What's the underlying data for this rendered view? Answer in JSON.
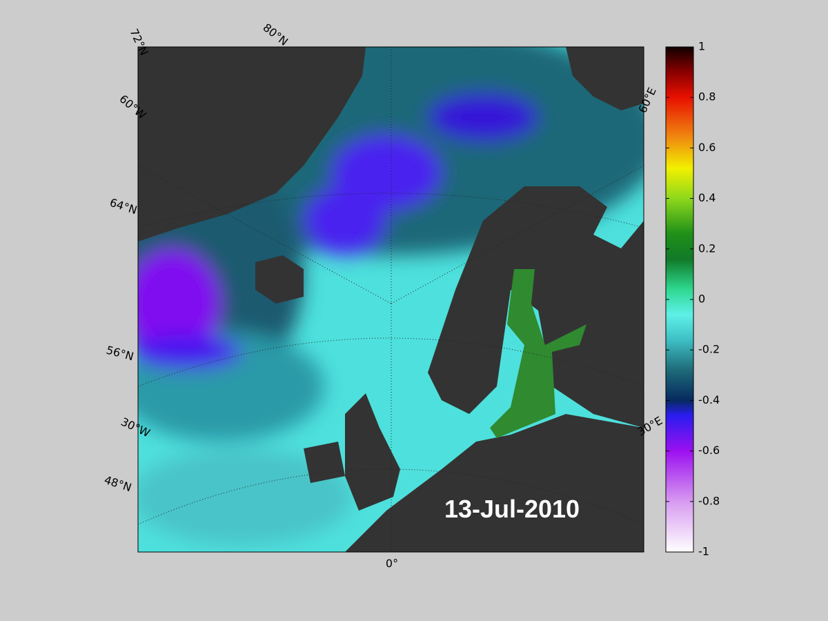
{
  "map": {
    "date_label": "13-Jul-2010",
    "graticule_labels": [
      "72°N",
      "80°N",
      "60°W",
      "64°N",
      "56°N",
      "30°W",
      "48°N",
      "60°E",
      "30°E",
      "0°"
    ]
  },
  "colorbar": {
    "lim": [
      -1,
      1
    ],
    "ticks": [
      1,
      0.8,
      0.6,
      0.4,
      0.2,
      0,
      -0.2,
      -0.4,
      -0.6,
      -0.8,
      -1
    ]
  }
}
